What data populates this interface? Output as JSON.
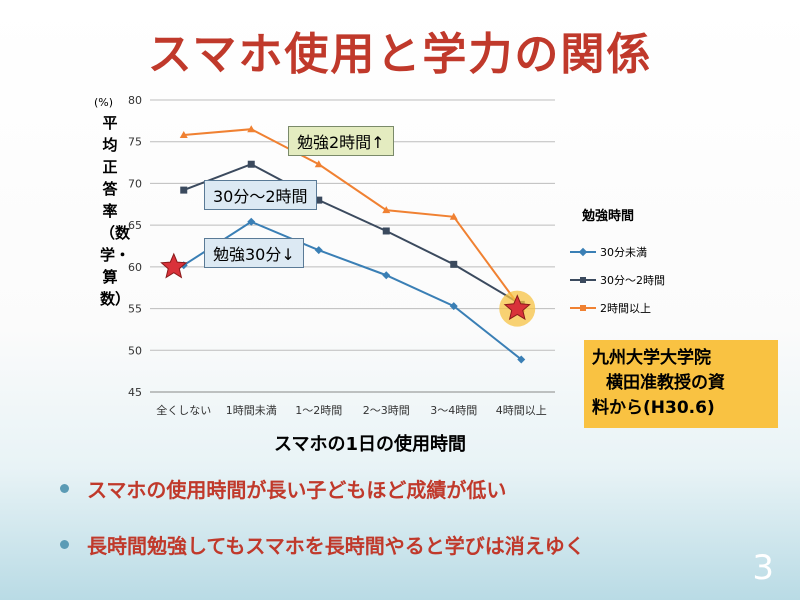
{
  "slide": {
    "title": "スマホ使用と学力の関係",
    "bullets": [
      "スマホの使用時間が長い子どもほど成績が低い",
      "長時間勉強してもスマホを長時間やると学びは消えゆく"
    ],
    "page_number": "3",
    "source_lines": [
      "九州大学大学院",
      "横田准教授の資",
      "料から(H30.6)"
    ],
    "callouts": [
      "勉強2時間↑",
      "30分～2時間",
      "勉強30分↓"
    ]
  },
  "colors": {
    "title": "#c0392b",
    "bullet_text": "#c0392b",
    "source_bg": "#f9c242"
  },
  "chart_data": {
    "type": "line",
    "title": "",
    "unit": "(%)",
    "ylabel": "平均正答率（数学・算数）",
    "xlabel": "スマホの1日の使用時間",
    "categories": [
      "全くしない",
      "1時間未満",
      "1～2時間",
      "2～3時間",
      "3～4時間",
      "4時間以上"
    ],
    "ylim": [
      45,
      80
    ],
    "yticks": [
      45,
      50,
      55,
      60,
      65,
      70,
      75,
      80
    ],
    "grid": true,
    "legend": {
      "title": "勉強時間",
      "placement": "right"
    },
    "series": [
      {
        "name": "30分未満",
        "color": "#3a7fb5",
        "marker": "diamond",
        "values": [
          60.2,
          65.4,
          62.0,
          59.0,
          55.3,
          48.9
        ]
      },
      {
        "name": "30分～2時間",
        "color": "#3b4a5e",
        "marker": "square",
        "values": [
          69.2,
          72.3,
          68.0,
          64.3,
          60.3,
          55.5
        ]
      },
      {
        "name": "2時間以上",
        "color": "#f08132",
        "marker": "triangle",
        "values": [
          75.8,
          76.5,
          72.3,
          66.8,
          66.0,
          55.0
        ]
      }
    ],
    "annotations": [
      "star-marker-全くしない-60",
      "star-marker-4時間以上-55"
    ]
  }
}
